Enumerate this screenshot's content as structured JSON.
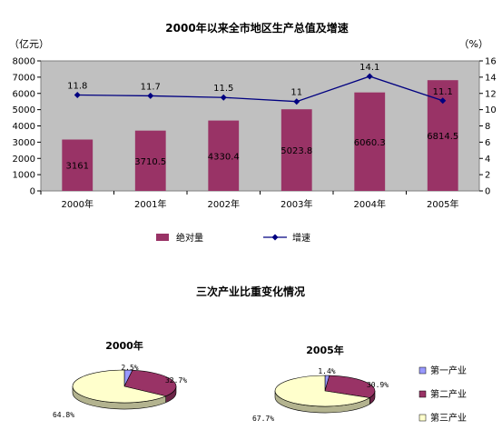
{
  "chart_data": [
    {
      "type": "bar",
      "title": "2000年以来全市地区生产总值及增速",
      "left_unit": "（亿元）",
      "right_unit": "（%）",
      "categories": [
        "2000年",
        "2001年",
        "2002年",
        "2003年",
        "2004年",
        "2005年"
      ],
      "series": [
        {
          "name": "绝对量",
          "type": "bar",
          "axis": "left",
          "color": "#993366",
          "values": [
            3161,
            3710.5,
            4330.4,
            5023.8,
            6060.3,
            6814.5
          ],
          "labels": [
            "3161",
            "3710.5",
            "4330.4",
            "5023.8",
            "6060.3",
            "6814.5"
          ]
        },
        {
          "name": "增速",
          "type": "line",
          "axis": "right",
          "color": "#000080",
          "values": [
            11.8,
            11.7,
            11.5,
            11,
            14.1,
            11.1
          ],
          "labels": [
            "11.8",
            "11.7",
            "11.5",
            "11",
            "14.1",
            "11.1"
          ]
        }
      ],
      "ylim_left": [
        0,
        8000
      ],
      "ylim_right": [
        0,
        16
      ],
      "yticks_left": [
        "0",
        "1000",
        "2000",
        "3000",
        "4000",
        "5000",
        "6000",
        "7000",
        "8000"
      ],
      "yticks_right": [
        "0",
        "2",
        "4",
        "6",
        "8",
        "10",
        "12",
        "14",
        "16"
      ],
      "legend_position": "bottom",
      "grid": false
    },
    {
      "type": "pie",
      "section_title": "三次产业比重变化情况",
      "pies": [
        {
          "title": "2000年",
          "values": [
            2.5,
            32.7,
            64.8
          ],
          "labels": [
            "2.5%",
            "32.7%",
            "64.8%"
          ]
        },
        {
          "title": "2005年",
          "values": [
            1.4,
            30.9,
            67.7
          ],
          "labels": [
            "1.4%",
            "30.9%",
            "67.7%"
          ]
        }
      ],
      "legend": [
        "第一产业",
        "第二产业",
        "第三产业"
      ],
      "colors": [
        "#9999ff",
        "#993366",
        "#ffffcc"
      ],
      "legend_position": "right"
    }
  ]
}
